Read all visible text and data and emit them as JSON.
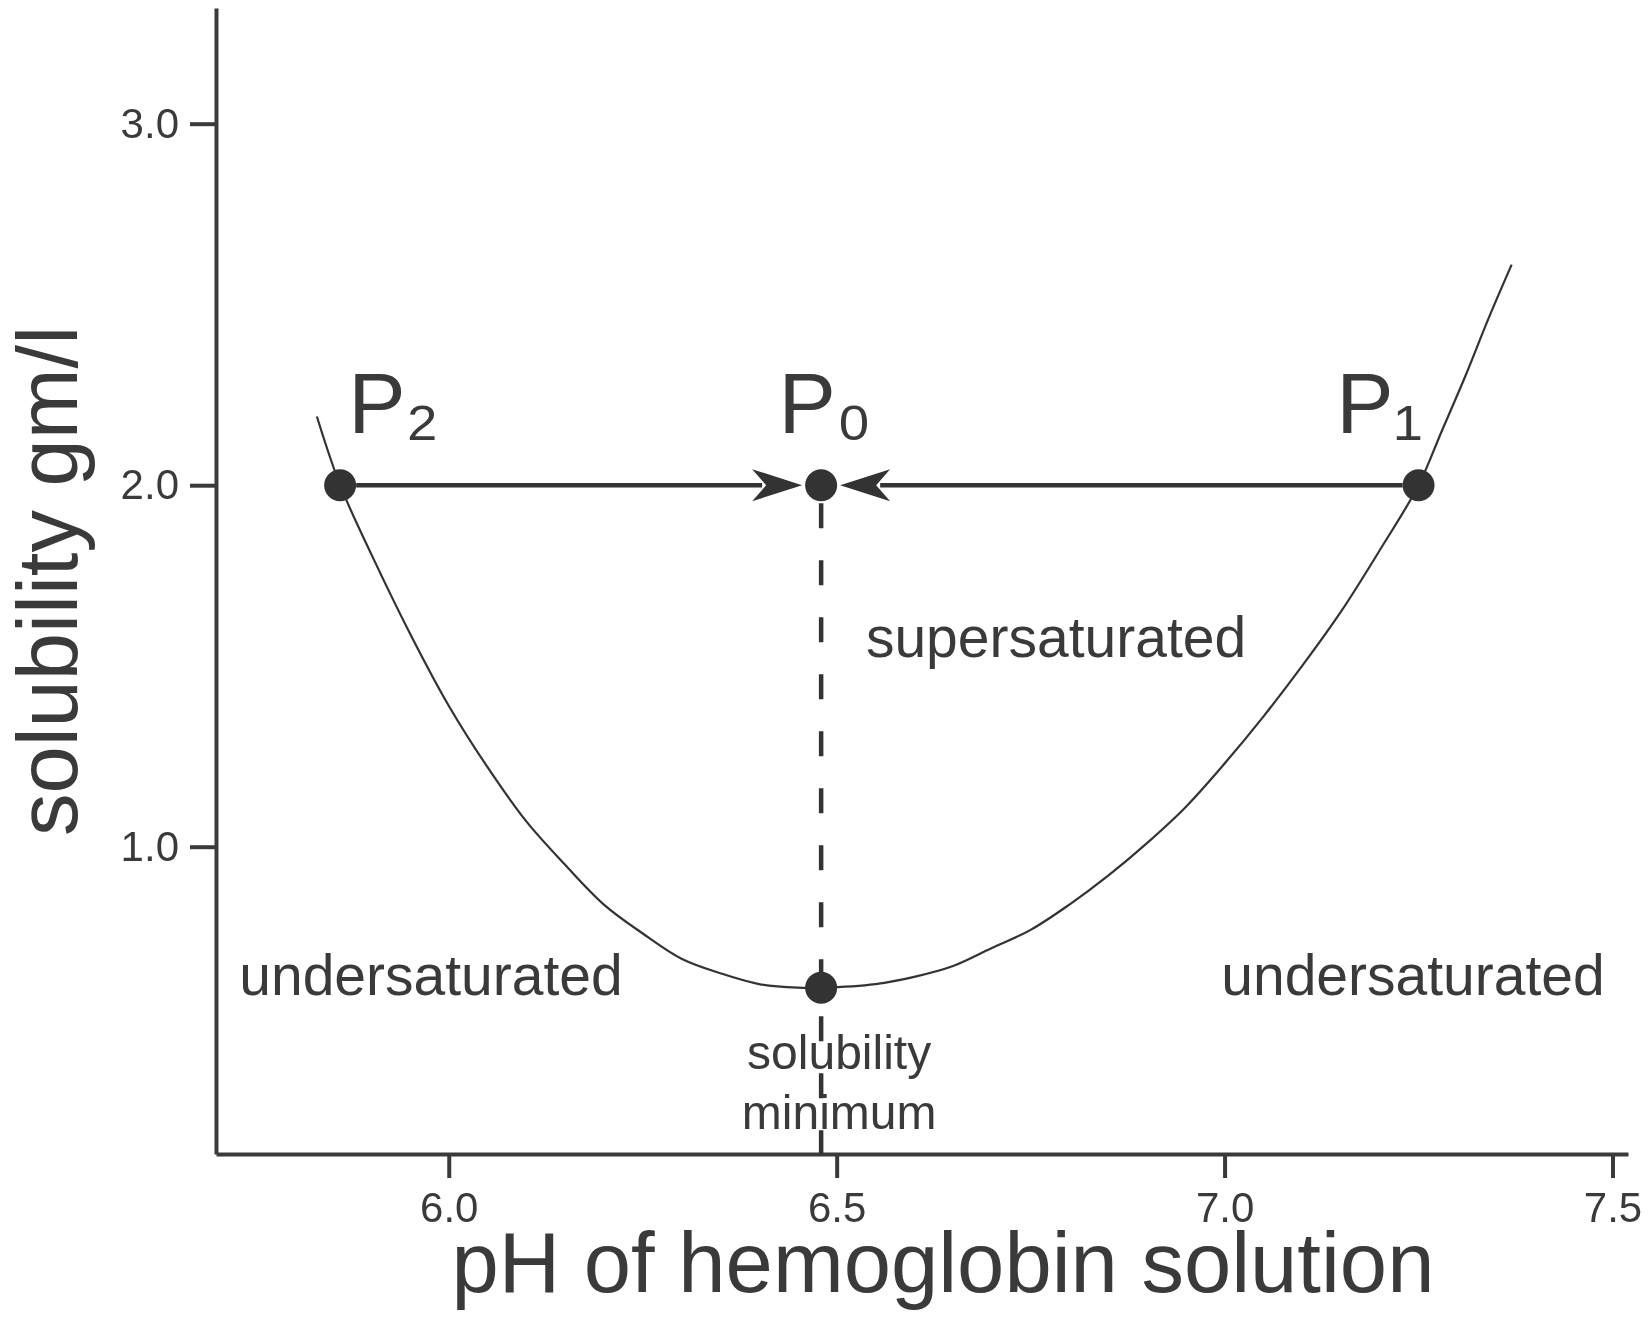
{
  "chart_data": {
    "type": "line",
    "xlabel": "pH of hemoglobin solution",
    "ylabel": "solubility gm/l",
    "xlim": [
      5.7,
      7.52
    ],
    "xticks": [
      {
        "value": 6,
        "label": "6.0"
      },
      6.5,
      {
        "value": 7,
        "label": "7.0"
      },
      7.5
    ],
    "ylim": [
      0.15,
      3.32
    ],
    "yticks": [
      {
        "value": 1,
        "label": "1.0"
      },
      {
        "value": 2,
        "label": "2.0"
      },
      {
        "value": 3,
        "label": "3.0"
      }
    ],
    "series": [
      {
        "color": "#333333",
        "x": [
          5.83,
          5.86,
          5.9,
          5.95,
          6.0,
          6.05,
          6.1,
          6.15,
          6.2,
          6.25,
          6.3,
          6.35,
          6.4,
          6.45,
          6.48,
          6.55,
          6.6,
          6.65,
          6.7,
          6.75,
          6.8,
          6.85,
          6.9,
          6.95,
          7.0,
          7.05,
          7.1,
          7.15,
          7.2,
          7.25,
          7.28,
          7.31,
          7.34,
          7.37
        ],
        "values": [
          2.19,
          2.0,
          1.81,
          1.59,
          1.39,
          1.22,
          1.07,
          0.95,
          0.84,
          0.76,
          0.69,
          0.65,
          0.62,
          0.61,
          0.61,
          0.62,
          0.64,
          0.67,
          0.72,
          0.77,
          0.84,
          0.92,
          1.01,
          1.11,
          1.23,
          1.36,
          1.5,
          1.65,
          1.82,
          2.0,
          2.15,
          2.3,
          2.46,
          2.61
        ]
      },
      {
        "color": "#333333",
        "x": [
          6.48,
          6.48
        ],
        "values": [
          1.95,
          0.15
        ],
        "line_style": "dashed"
      },
      {
        "type": "scatter",
        "color": "#333333",
        "x": [
          5.86,
          6.48,
          7.25,
          6.48
        ],
        "values": [
          2.0,
          2.0,
          2.0,
          0.61
        ],
        "marker": "circle"
      }
    ],
    "annotations": [
      {
        "text": "P₂",
        "x": 5.86,
        "y": 2.0
      },
      {
        "text": "P₀",
        "x": 6.48,
        "y": 2.0
      },
      {
        "text": "P₁",
        "x": 7.25,
        "y": 2.0
      },
      "supersaturated",
      "undersaturated",
      "undersaturated",
      {
        "text": "solubility minimum",
        "x": 6.48,
        "y": 0.61
      }
    ]
  }
}
